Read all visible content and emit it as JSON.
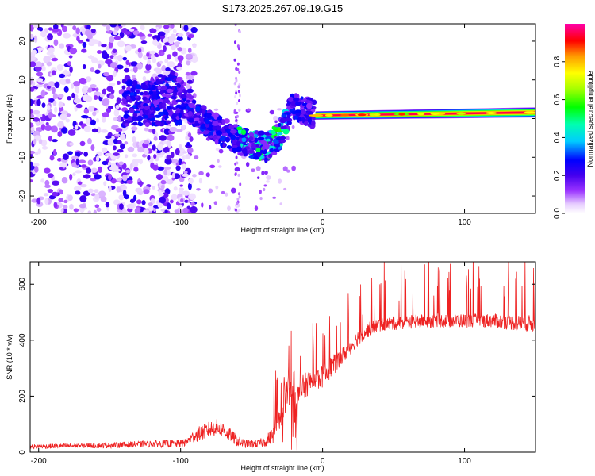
{
  "title": "S173.2025.267.09.19.G15",
  "colors": {
    "line": "#ee2222",
    "frame": "#000000"
  },
  "chart_data": [
    {
      "type": "heatmap",
      "name": "spectrogram",
      "xlabel": "Height of straight line (km)",
      "ylabel": "Frequency (Hz)",
      "xlim": [
        -206,
        150
      ],
      "ylim": [
        -24.5,
        24.5
      ],
      "xticks": [
        -200,
        -100,
        0,
        100
      ],
      "xtick_labels": [
        "-200",
        "-100",
        "0",
        "100"
      ],
      "yticks": [
        -20,
        -10,
        0,
        10,
        20
      ],
      "ytick_labels": [
        "-20",
        "-10",
        "0",
        "10",
        "20"
      ],
      "colorbar": {
        "label": "Normalized spectral amplitude",
        "range": [
          0,
          1
        ],
        "ticks": [
          0.0,
          0.2,
          0.4,
          0.6,
          0.8
        ],
        "tick_labels": [
          "0.0",
          "0.2",
          "0.4",
          "0.6",
          "0.8"
        ]
      },
      "features": {
        "noise_region_x": [
          -206,
          -100
        ],
        "descending_track": [
          [
            -100,
            5
          ],
          [
            -90,
            1
          ],
          [
            -80,
            -1.5
          ],
          [
            -70,
            -3.5
          ],
          [
            -60,
            -5.5
          ],
          [
            -50,
            -6.5
          ],
          [
            -40,
            -7.5
          ],
          [
            -32,
            -5
          ],
          [
            -27,
            -2
          ],
          [
            -22,
            3
          ],
          [
            -15,
            2.5
          ],
          [
            -8,
            1.5
          ]
        ],
        "carrier_line": {
          "x_start": -5,
          "x_end": 150,
          "freq_start": 0.8,
          "freq_end": 1.6,
          "amplitude": 0.95
        }
      }
    },
    {
      "type": "line",
      "name": "snr",
      "xlabel": "Height of straight line (km)",
      "ylabel": "SNR (10 * v/v)",
      "xlim": [
        -206,
        150
      ],
      "ylim": [
        0,
        680
      ],
      "xticks": [
        -200,
        -100,
        0,
        100
      ],
      "xtick_labels": [
        "-200",
        "-100",
        "0",
        "100"
      ],
      "yticks": [
        0,
        200,
        400,
        600
      ],
      "ytick_labels": [
        "0",
        "200",
        "400",
        "600"
      ],
      "series": [
        {
          "name": "SNR",
          "x": [
            -206,
            -150,
            -120,
            -100,
            -95,
            -90,
            -80,
            -75,
            -70,
            -60,
            -55,
            -50,
            -45,
            -40,
            -35,
            -30,
            -28,
            -25,
            -22,
            -20,
            -18,
            -15,
            -10,
            -5,
            0,
            5,
            10,
            15,
            20,
            25,
            30,
            35,
            40,
            50,
            60,
            80,
            100,
            120,
            140,
            150
          ],
          "mean": [
            20,
            25,
            30,
            30,
            40,
            60,
            80,
            90,
            80,
            40,
            30,
            30,
            30,
            40,
            60,
            120,
            180,
            240,
            200,
            160,
            180,
            220,
            250,
            260,
            270,
            300,
            320,
            350,
            380,
            410,
            430,
            445,
            455,
            460,
            465,
            470,
            470,
            470,
            460,
            460
          ],
          "noise": [
            8,
            10,
            12,
            15,
            15,
            25,
            30,
            30,
            30,
            20,
            15,
            15,
            15,
            20,
            30,
            50,
            70,
            90,
            80,
            60,
            60,
            50,
            45,
            45,
            40,
            40,
            35,
            30,
            30,
            28,
            28,
            25,
            25,
            25,
            25,
            25,
            25,
            25,
            30,
            30
          ]
        }
      ]
    }
  ]
}
